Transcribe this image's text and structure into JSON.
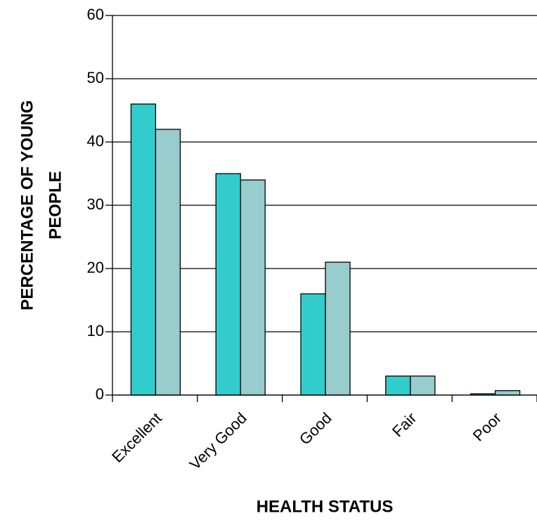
{
  "chart_data": {
    "type": "bar",
    "categories": [
      "Excellent",
      "Very Good",
      "Good",
      "Fair",
      "Poor"
    ],
    "series": [
      {
        "color": "#33cccc",
        "values": [
          46,
          35,
          16,
          3,
          0.2
        ]
      },
      {
        "color": "#99cccc",
        "values": [
          42,
          34,
          21,
          3,
          0.7
        ]
      }
    ],
    "ylim": [
      0,
      60
    ],
    "yticks": [
      0,
      10,
      20,
      30,
      40,
      50,
      60
    ],
    "grid": true,
    "xlabel": "HEALTH STATUS",
    "ylabel": [
      "PERCENTAGE OF YOUNG",
      "PEOPLE"
    ]
  }
}
